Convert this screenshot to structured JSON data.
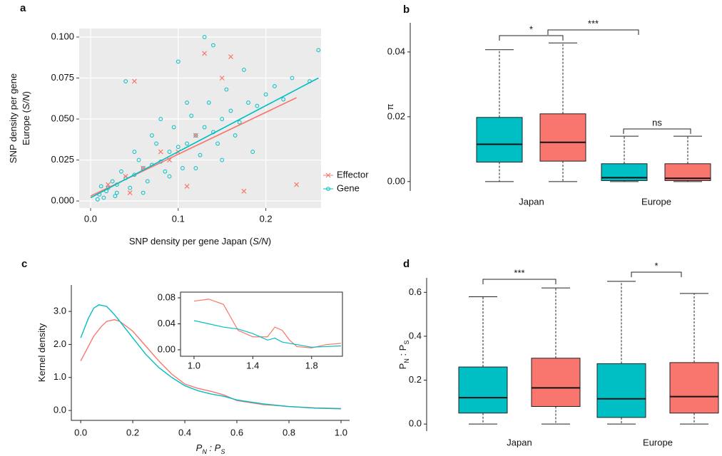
{
  "chart_data": [
    {
      "type": "scatter",
      "panel_label": "a",
      "x_label": [
        {
          "text": "SNP density per gene Japan ("
        },
        {
          "text": "S/N",
          "italic": true
        },
        {
          "text": ")"
        }
      ],
      "y_label": [
        [
          {
            "text": "SNP density per gene"
          }
        ],
        [
          {
            "text": "Europe ("
          },
          {
            "text": "S/N",
            "italic": true
          },
          {
            "text": ")"
          }
        ]
      ],
      "xlim": [
        -0.013,
        0.263
      ],
      "ylim": [
        -0.0043,
        0.1052
      ],
      "xticks": [
        {
          "value": 0,
          "label": "0.0"
        },
        {
          "value": 0.1,
          "label": "0.1"
        },
        {
          "value": 0.2,
          "label": "0.2"
        }
      ],
      "yticks": [
        {
          "value": 0,
          "label": "0.000"
        },
        {
          "value": 0.025,
          "label": "0.025"
        },
        {
          "value": 0.05,
          "label": "0.050"
        },
        {
          "value": 0.075,
          "label": "0.075"
        },
        {
          "value": 0.1,
          "label": "0.100"
        }
      ],
      "grid": true,
      "background": "#ebebeb",
      "legend": "right",
      "series": [
        {
          "name": "Effector",
          "color": "#f8766d",
          "marker": "x",
          "x": [
            0.02,
            0.04,
            0.05,
            0.06,
            0.08,
            0.1,
            0.12,
            0.13,
            0.16,
            0.175,
            0.235,
            0.11,
            0.045,
            0.15,
            0.09
          ],
          "y": [
            0.01,
            0.015,
            0.073,
            0.02,
            0.03,
            0.03,
            0.04,
            0.09,
            0.088,
            0.006,
            0.01,
            0.009,
            0.005,
            0.075,
            0.025
          ],
          "fit_x": [
            0,
            0.235
          ],
          "fit_y": [
            0.003,
            0.063
          ]
        },
        {
          "name": "Gene",
          "color": "#00bfc4",
          "marker": "circle",
          "x": [
            0.01,
            0.02,
            0.03,
            0.04,
            0.05,
            0.06,
            0.07,
            0.08,
            0.09,
            0.1,
            0.11,
            0.12,
            0.13,
            0.14,
            0.15,
            0.16,
            0.17,
            0.18,
            0.19,
            0.2,
            0.21,
            0.22,
            0.23,
            0.25,
            0.26,
            0.015,
            0.025,
            0.035,
            0.045,
            0.055,
            0.065,
            0.075,
            0.085,
            0.095,
            0.105,
            0.115,
            0.125,
            0.135,
            0.145,
            0.155,
            0.165,
            0.175,
            0.185,
            0.012,
            0.03,
            0.05,
            0.07,
            0.09,
            0.11,
            0.13,
            0.15,
            0.04,
            0.06,
            0.08,
            0.1,
            0.12,
            0.14,
            0.008,
            0.018,
            0.028
          ],
          "y": [
            0.004,
            0.008,
            0.01,
            0.014,
            0.016,
            0.02,
            0.022,
            0.024,
            0.03,
            0.033,
            0.035,
            0.04,
            0.045,
            0.042,
            0.05,
            0.055,
            0.048,
            0.06,
            0.058,
            0.065,
            0.07,
            0.062,
            0.075,
            0.073,
            0.092,
            0.002,
            0.012,
            0.018,
            0.008,
            0.025,
            0.012,
            0.035,
            0.018,
            0.045,
            0.02,
            0.052,
            0.028,
            0.06,
            0.035,
            0.068,
            0.04,
            0.08,
            0.03,
            0.009,
            0.005,
            0.03,
            0.04,
            0.015,
            0.06,
            0.1,
            0.025,
            0.073,
            0.005,
            0.05,
            0.085,
            0.02,
            0.095,
            0.001,
            0.006,
            0.003
          ],
          "fit_x": [
            0,
            0.26
          ],
          "fit_y": [
            0.002,
            0.075
          ]
        }
      ]
    },
    {
      "type": "box",
      "panel_label": "b",
      "y_label": [
        {
          "text": "π"
        }
      ],
      "categories": [
        "Japan",
        "Europe"
      ],
      "ylim": [
        -0.0029,
        0.049
      ],
      "yticks": [
        {
          "value": 0,
          "label": "0.00"
        },
        {
          "value": 0.02,
          "label": "0.02"
        },
        {
          "value": 0.04,
          "label": "0.04"
        }
      ],
      "series": [
        {
          "color": "#00bfc4",
          "boxes": [
            {
              "min": 0,
              "q1": 0.006,
              "median": 0.0115,
              "q3": 0.0198,
              "max": 0.0407
            },
            {
              "min": 0,
              "q1": 0.0003,
              "median": 0.0012,
              "q3": 0.0055,
              "max": 0.014
            }
          ]
        },
        {
          "color": "#f8766d",
          "boxes": [
            {
              "min": 0,
              "q1": 0.0063,
              "median": 0.0121,
              "q3": 0.0209,
              "max": 0.0428
            },
            {
              "min": 0,
              "q1": 0.0003,
              "median": 0.001,
              "q3": 0.0055,
              "max": 0.014
            }
          ]
        }
      ],
      "annotations": [
        {
          "text": "*"
        },
        {
          "text": "***"
        },
        {
          "text": "ns"
        }
      ]
    },
    {
      "type": "line",
      "panel_label": "c",
      "x_label": [
        {
          "text": "P"
        },
        {
          "text": "N",
          "sub": true
        },
        {
          "text": " : P"
        },
        {
          "text": "S",
          "sub": true
        }
      ],
      "y_label": [
        {
          "text": "Kernel density"
        }
      ],
      "xlim": [
        -0.036,
        1.033
      ],
      "ylim": [
        -0.3,
        3.8
      ],
      "xticks": [
        {
          "value": 0,
          "label": "0.0"
        },
        {
          "value": 0.2,
          "label": "0.2"
        },
        {
          "value": 0.4,
          "label": "0.4"
        },
        {
          "value": 0.6,
          "label": "0.6"
        },
        {
          "value": 0.8,
          "label": "0.8"
        },
        {
          "value": 1,
          "label": "1.0"
        }
      ],
      "yticks": [
        {
          "value": 0,
          "label": "0.0"
        },
        {
          "value": 1,
          "label": "1.0"
        },
        {
          "value": 2,
          "label": "2.0"
        },
        {
          "value": 3,
          "label": "3.0"
        }
      ],
      "series": [
        {
          "color": "#f8766d",
          "x": [
            0,
            0.03,
            0.05,
            0.08,
            0.1,
            0.13,
            0.15,
            0.2,
            0.25,
            0.3,
            0.35,
            0.4,
            0.45,
            0.5,
            0.55,
            0.6,
            0.7,
            0.8,
            0.9,
            1
          ],
          "values": [
            1.5,
            1.95,
            2.25,
            2.55,
            2.7,
            2.75,
            2.7,
            2.4,
            1.95,
            1.5,
            1.1,
            0.8,
            0.67,
            0.58,
            0.47,
            0.3,
            0.18,
            0.12,
            0.08,
            0.06
          ]
        },
        {
          "color": "#00bfc4",
          "x": [
            0,
            0.03,
            0.05,
            0.07,
            0.1,
            0.13,
            0.15,
            0.2,
            0.25,
            0.3,
            0.35,
            0.4,
            0.45,
            0.5,
            0.55,
            0.6,
            0.7,
            0.8,
            0.9,
            1
          ],
          "values": [
            2.2,
            2.8,
            3.1,
            3.2,
            3.15,
            2.9,
            2.7,
            2.2,
            1.7,
            1.3,
            1.0,
            0.75,
            0.6,
            0.5,
            0.43,
            0.32,
            0.2,
            0.12,
            0.07,
            0.05
          ]
        }
      ],
      "inset": {
        "xlim": [
          0.908,
          2.01
        ],
        "ylim": [
          -0.0099,
          0.0888
        ],
        "xticks": [
          {
            "value": 1,
            "label": "1.0"
          },
          {
            "value": 1.4,
            "label": "1.4"
          },
          {
            "value": 1.8,
            "label": "1.8"
          }
        ],
        "yticks": [
          {
            "value": 0,
            "label": "0.00"
          },
          {
            "value": 0.04,
            "label": "0.04"
          },
          {
            "value": 0.08,
            "label": "0.08"
          }
        ],
        "series": [
          {
            "color": "#f8766d",
            "x": [
              1,
              1.1,
              1.2,
              1.25,
              1.3,
              1.4,
              1.5,
              1.55,
              1.6,
              1.65,
              1.7,
              1.8,
              1.9,
              2
            ],
            "values": [
              0.075,
              0.078,
              0.07,
              0.05,
              0.03,
              0.02,
              0.02,
              0.035,
              0.03,
              0.015,
              0.005,
              0.003,
              0.008,
              0.01
            ]
          },
          {
            "color": "#00bfc4",
            "x": [
              1,
              1.1,
              1.2,
              1.3,
              1.4,
              1.5,
              1.55,
              1.6,
              1.7,
              1.8,
              1.9,
              2
            ],
            "values": [
              0.045,
              0.04,
              0.035,
              0.032,
              0.025,
              0.015,
              0.018,
              0.012,
              0.008,
              0.004,
              0.005,
              0.006
            ]
          }
        ]
      }
    },
    {
      "type": "box",
      "panel_label": "d",
      "y_label": [
        {
          "text": "P"
        },
        {
          "text": "N",
          "sub": true
        },
        {
          "text": " : P"
        },
        {
          "text": "S",
          "sub": true
        }
      ],
      "categories": [
        "Japan",
        "Europe"
      ],
      "ylim": [
        -0.032,
        0.666
      ],
      "yticks": [
        {
          "value": 0,
          "label": "0.0"
        },
        {
          "value": 0.2,
          "label": "0.2"
        },
        {
          "value": 0.4,
          "label": "0.4"
        },
        {
          "value": 0.6,
          "label": "0.6"
        }
      ],
      "series": [
        {
          "color": "#00bfc4",
          "boxes": [
            {
              "min": 0,
              "q1": 0.05,
              "median": 0.12,
              "q3": 0.26,
              "max": 0.58
            },
            {
              "min": 0,
              "q1": 0.03,
              "median": 0.115,
              "q3": 0.275,
              "max": 0.65
            }
          ]
        },
        {
          "color": "#f8766d",
          "boxes": [
            {
              "min": 0,
              "q1": 0.08,
              "median": 0.165,
              "q3": 0.3,
              "max": 0.62
            },
            {
              "min": 0,
              "q1": 0.05,
              "median": 0.125,
              "q3": 0.28,
              "max": 0.595
            }
          ]
        }
      ],
      "annotations": [
        {
          "text": "***"
        },
        {
          "text": "*"
        }
      ]
    }
  ]
}
